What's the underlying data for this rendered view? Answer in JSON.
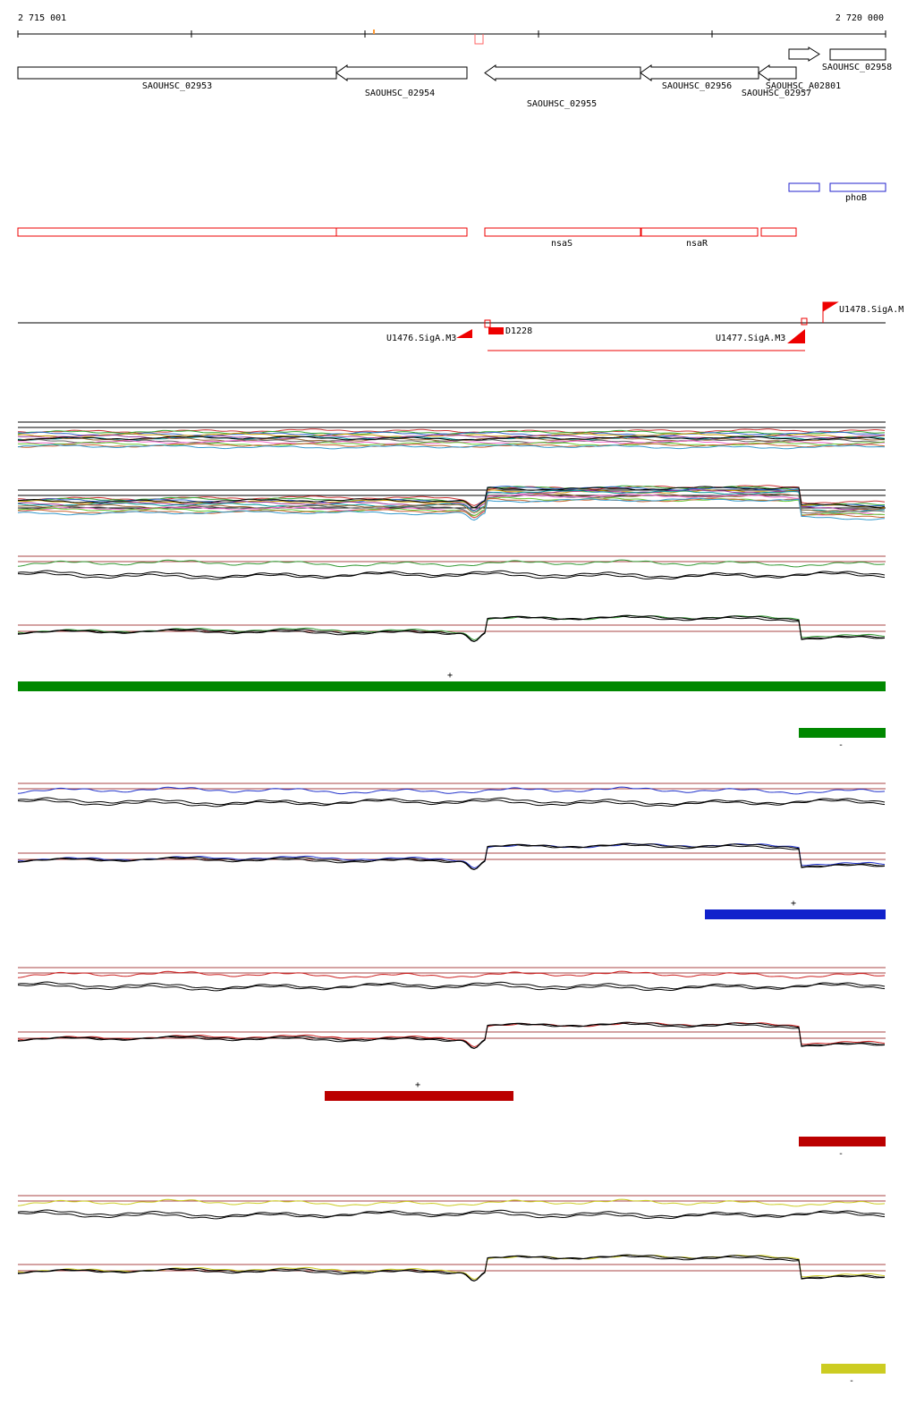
{
  "ruler": {
    "start": "2 715 001",
    "end": "2 720 000"
  },
  "genes": [
    {
      "label": "SAOUHSC_02953"
    },
    {
      "label": "SAOUHSC_02954"
    },
    {
      "label": "SAOUHSC_02955"
    },
    {
      "label": "SAOUHSC_02956"
    },
    {
      "label": "SAOUHSC_02957"
    },
    {
      "label": "SAOUHSC_A02801"
    },
    {
      "label": "SAOUHSC_02958"
    }
  ],
  "regulon": {
    "label": "phoB"
  },
  "transcripts": [
    {
      "label": "nsaS"
    },
    {
      "label": "nsaR"
    }
  ],
  "promoters": [
    {
      "label": "U1476.SigA.M3"
    },
    {
      "label": "D1228"
    },
    {
      "label": "U1477.SigA.M3"
    },
    {
      "label": "U1478.SigA.M"
    }
  ],
  "segments": [
    {
      "strand": "+"
    },
    {
      "strand": "-"
    },
    {
      "strand": "+"
    },
    {
      "strand": "+"
    },
    {
      "strand": "-"
    },
    {
      "strand": "-"
    }
  ]
}
